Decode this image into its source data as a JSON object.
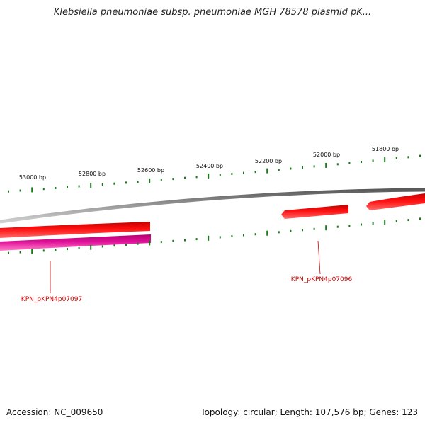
{
  "title": "Klebsiella pneumoniae subsp. pneumoniae MGH 78578 plasmid pK...",
  "ruler": {
    "labels": [
      "53000 bp",
      "52800 bp",
      "52600 bp",
      "52400 bp",
      "52200 bp",
      "52000 bp",
      "51800 bp"
    ],
    "color": "#1a7a1a"
  },
  "genes": [
    {
      "label": "KPN_pKPN4p07097",
      "color": "#ff0000",
      "label_color": "#cc0000"
    },
    {
      "label": "KPN_pKPN4p07096",
      "color": "#ff0000",
      "label_color": "#cc0000"
    }
  ],
  "colors": {
    "forward": "#ff0000",
    "reverse": "#e0119a",
    "backbone": "#8c8c8c"
  },
  "footer": {
    "accession": "Accession: NC_009650",
    "stats": "Topology: circular; Length: 107,576 bp; Genes: 123"
  }
}
